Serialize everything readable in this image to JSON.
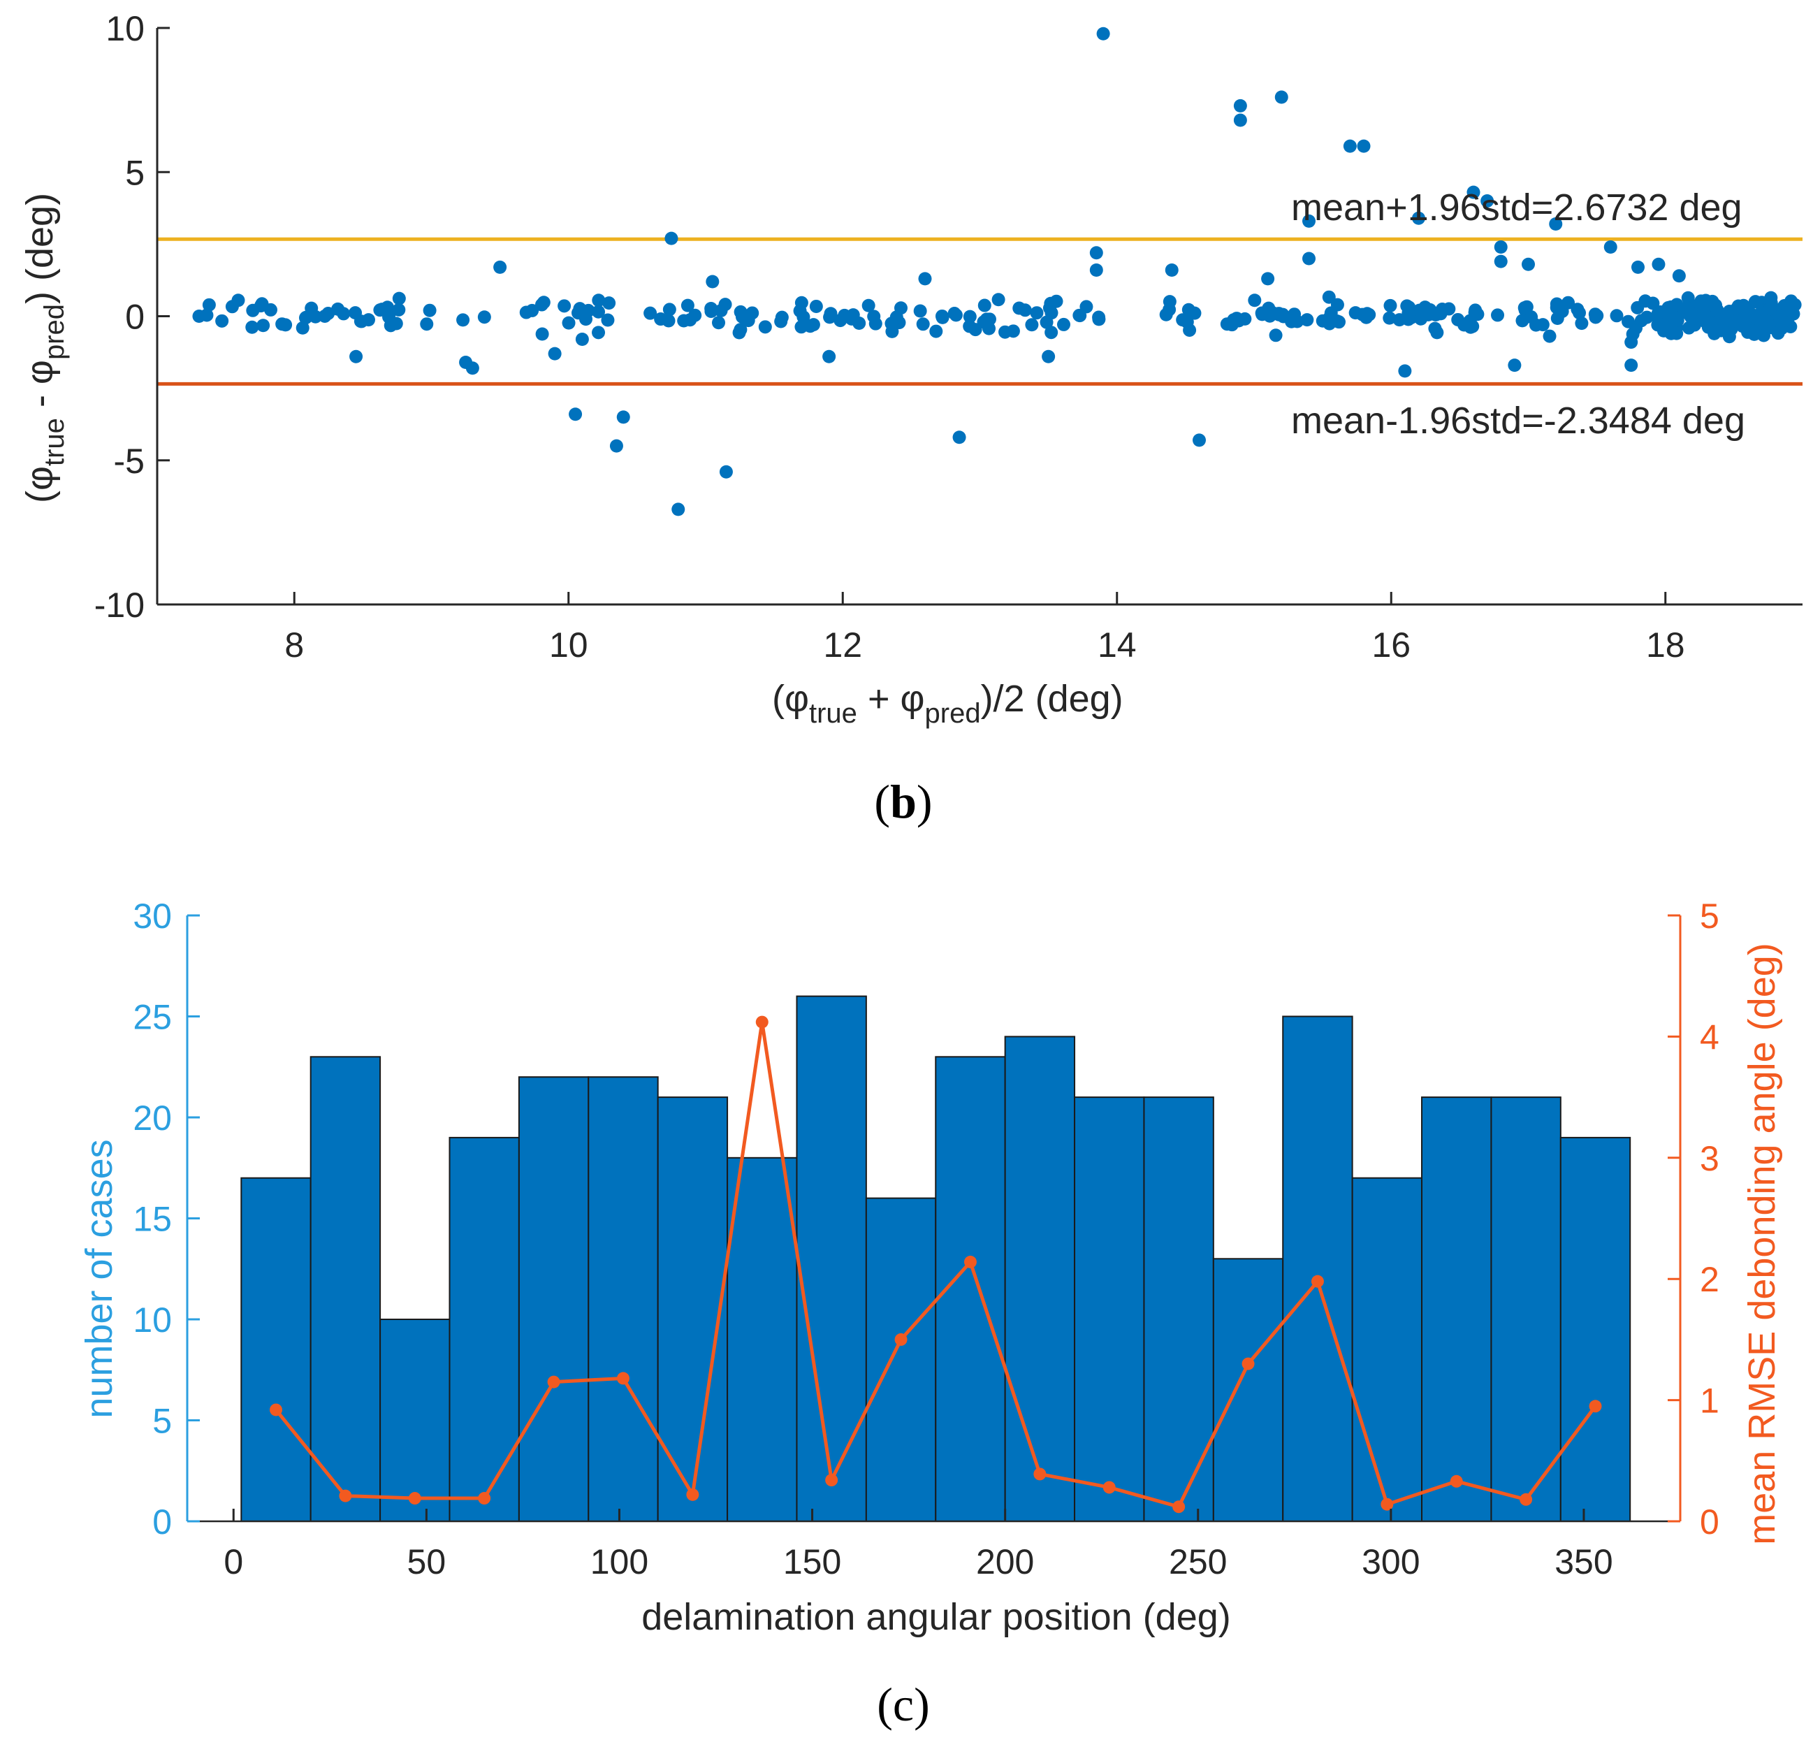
{
  "chart_data": [
    {
      "type": "scatter",
      "panel_label": "b",
      "title": "",
      "xlim": [
        7,
        19
      ],
      "ylim": [
        -10,
        10
      ],
      "xticks": [
        8,
        10,
        12,
        14,
        16,
        18
      ],
      "yticks": [
        -10,
        -5,
        0,
        5,
        10
      ],
      "xticklabels": [
        "8",
        "10",
        "12",
        "14",
        "16",
        "18"
      ],
      "yticklabels": [
        "-10",
        "-5",
        "0",
        "5",
        "10"
      ],
      "xlabel": {
        "main": "(φ",
        "sub1": "true",
        "mid": " + φ",
        "sub2": "pred",
        "end": ")/2 (deg)"
      },
      "ylabel": {
        "main": "(φ",
        "sub1": "true",
        "mid": " - φ",
        "sub2": "pred",
        "end": ") (deg)"
      },
      "point_color": "#0072BD",
      "upper_line": {
        "value": 2.6732,
        "color": "#EDB120",
        "label": "mean+1.96std=2.6732 deg"
      },
      "lower_line": {
        "value": -2.3484,
        "color": "#D95319",
        "label": "mean-1.96std=-2.3484 deg"
      },
      "outliers": [
        [
          13.9,
          9.8
        ],
        [
          14.9,
          7.3
        ],
        [
          14.9,
          6.8
        ],
        [
          15.2,
          7.6
        ],
        [
          15.7,
          5.9
        ],
        [
          15.8,
          5.9
        ],
        [
          16.6,
          4.3
        ],
        [
          16.7,
          4.0
        ],
        [
          15.4,
          3.3
        ],
        [
          16.2,
          3.4
        ],
        [
          17.2,
          3.2
        ],
        [
          10.75,
          2.7
        ],
        [
          16.8,
          2.4
        ],
        [
          17.6,
          2.4
        ],
        [
          13.85,
          2.2
        ],
        [
          15.4,
          2.0
        ],
        [
          16.8,
          1.9
        ],
        [
          9.5,
          1.7
        ],
        [
          13.85,
          1.6
        ],
        [
          14.4,
          1.6
        ],
        [
          17.8,
          1.7
        ],
        [
          17.95,
          1.8
        ],
        [
          18.1,
          1.4
        ],
        [
          12.6,
          1.3
        ],
        [
          11.05,
          1.2
        ],
        [
          15.1,
          1.3
        ],
        [
          17.0,
          1.8
        ],
        [
          8.45,
          -1.4
        ],
        [
          9.25,
          -1.6
        ],
        [
          9.3,
          -1.8
        ],
        [
          9.9,
          -1.3
        ],
        [
          10.1,
          -0.8
        ],
        [
          11.9,
          -1.4
        ],
        [
          13.5,
          -1.4
        ],
        [
          16.1,
          -1.9
        ],
        [
          16.9,
          -1.7
        ],
        [
          17.75,
          -1.7
        ],
        [
          17.75,
          -0.9
        ],
        [
          10.05,
          -3.4
        ],
        [
          10.35,
          -4.5
        ],
        [
          10.4,
          -3.5
        ],
        [
          10.8,
          -6.7
        ],
        [
          11.15,
          -5.4
        ],
        [
          12.85,
          -4.2
        ],
        [
          14.6,
          -4.3
        ]
      ],
      "cluster_segments": [
        [
          7.1,
          9.45,
          40
        ],
        [
          9.6,
          11.75,
          44
        ],
        [
          11.75,
          13.95,
          52
        ],
        [
          14.3,
          14.6,
          8
        ],
        [
          14.8,
          16.3,
          48
        ],
        [
          16.3,
          17.9,
          42
        ],
        [
          17.9,
          18.95,
          170
        ]
      ]
    },
    {
      "type": "bar",
      "panel_label": "c",
      "title": "",
      "xlabel": "delamination angular position (deg)",
      "ylabel": "number of cases",
      "y2label": "mean RMSE debonding angle (deg)",
      "xlim": [
        -12,
        375
      ],
      "ylim": [
        0,
        30
      ],
      "y2lim": [
        0,
        5
      ],
      "xticks": [
        0,
        50,
        100,
        150,
        200,
        250,
        300,
        350
      ],
      "yticks": [
        0,
        5,
        10,
        15,
        20,
        25,
        30
      ],
      "y2ticks": [
        0,
        1,
        2,
        3,
        4,
        5
      ],
      "xticklabels": [
        "0",
        "50",
        "100",
        "150",
        "200",
        "250",
        "300",
        "350"
      ],
      "yticklabels": [
        "0",
        "5",
        "10",
        "15",
        "20",
        "25",
        "30"
      ],
      "y2ticklabels": [
        "0",
        "1",
        "2",
        "3",
        "4",
        "5"
      ],
      "bin_edges": [
        2,
        20,
        38,
        56,
        74,
        92,
        110,
        128,
        146,
        164,
        182,
        200,
        218,
        236,
        254,
        272,
        290,
        308,
        326,
        344,
        362
      ],
      "counts": [
        17,
        23,
        10,
        19,
        22,
        22,
        21,
        18,
        26,
        16,
        23,
        24,
        21,
        21,
        13,
        25,
        17,
        21,
        21,
        19
      ],
      "bar_color": "#0072BD",
      "left_axis_color": "#2B9FE0",
      "line_color": "#F25A20",
      "line": {
        "name": "mean RMSE debonding angle",
        "x": [
          11,
          29,
          47,
          65,
          83,
          101,
          119,
          137,
          155,
          173,
          191,
          209,
          227,
          245,
          263,
          281,
          299,
          317,
          335,
          353
        ],
        "values": [
          0.92,
          0.21,
          0.19,
          0.19,
          1.15,
          1.18,
          0.22,
          4.12,
          0.34,
          1.5,
          2.14,
          0.39,
          0.28,
          0.12,
          1.3,
          1.98,
          0.14,
          0.33,
          0.18,
          0.95
        ]
      }
    }
  ]
}
